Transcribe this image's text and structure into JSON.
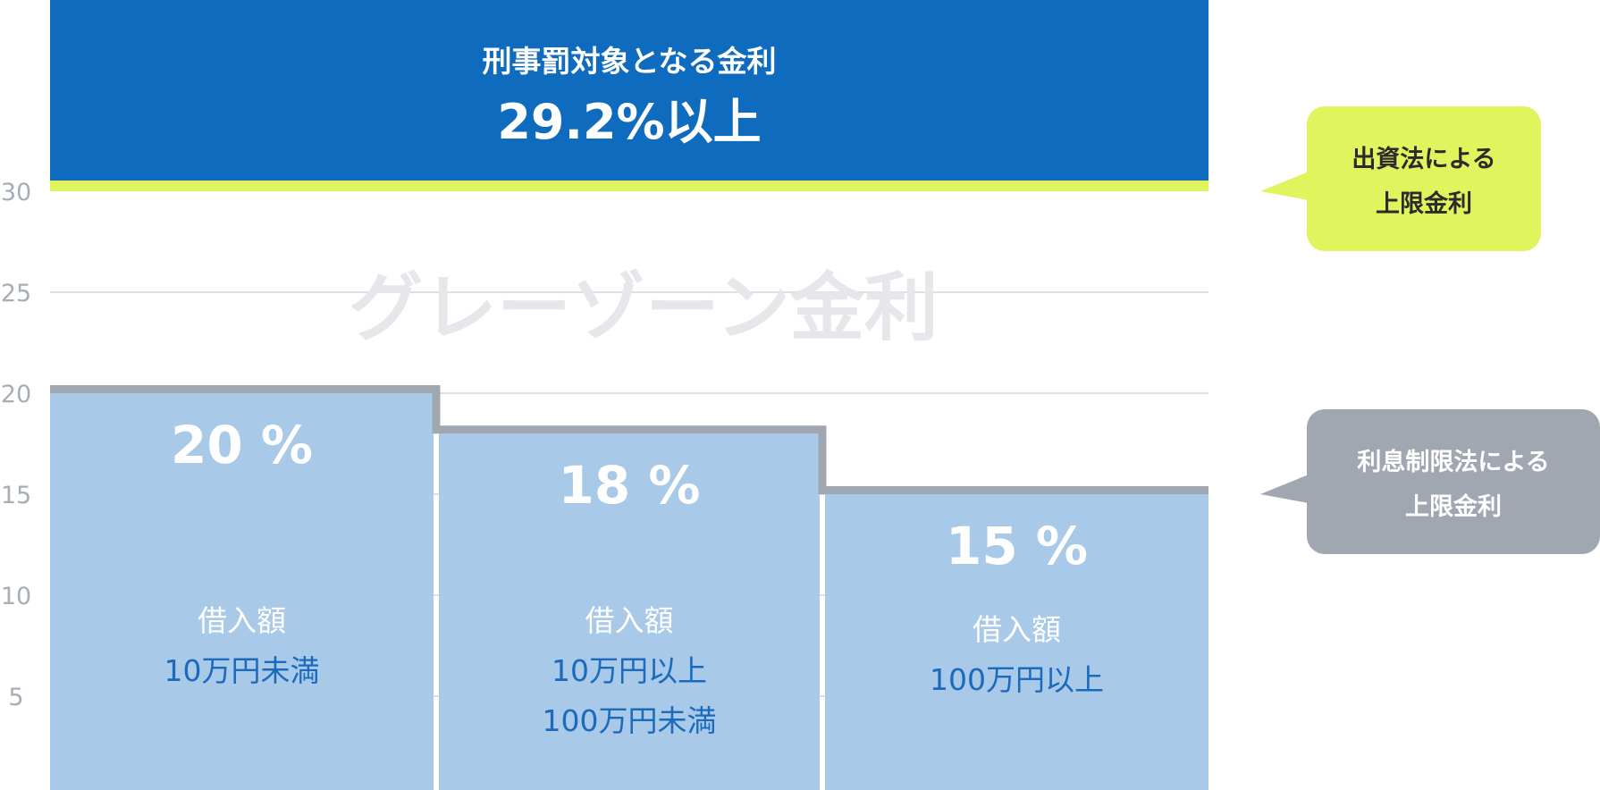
{
  "chart_data": {
    "type": "bar",
    "ylim": [
      0,
      30
    ],
    "yticks": [
      5,
      10,
      15,
      20,
      25,
      30
    ],
    "grid": true,
    "bars": [
      {
        "value": 20,
        "label": "20 %",
        "category_lines": [
          "借入額",
          "10万円未満"
        ]
      },
      {
        "value": 18,
        "label": "18 %",
        "category_lines": [
          "借入額",
          "10万円以上",
          "100万円未満"
        ]
      },
      {
        "value": 15,
        "label": "15 %",
        "category_lines": [
          "借入額",
          "100万円以上"
        ]
      }
    ],
    "criminal_band": {
      "threshold": 29.2,
      "title": "刑事罰対象となる金利",
      "value_label": "29.2%以上"
    },
    "upper_limit": 30,
    "gray_zone_label": "グレーゾーン金利",
    "callouts": [
      {
        "id": "investment-law",
        "lines": [
          "出資法による",
          "上限金利"
        ],
        "y_value": 30
      },
      {
        "id": "interest-restriction-law",
        "lines": [
          "利息制限法による",
          "上限金利"
        ],
        "y_value": 15
      }
    ],
    "colors": {
      "bar": "#a8c9e7",
      "bar_outline": "#a0a7b1",
      "criminal_band": "#0e6bbd",
      "upper_limit_line": "#dff45d",
      "callout_investment": "#dff45d",
      "callout_restriction": "#a0a7b1",
      "category_text": "#1b6abd"
    }
  }
}
